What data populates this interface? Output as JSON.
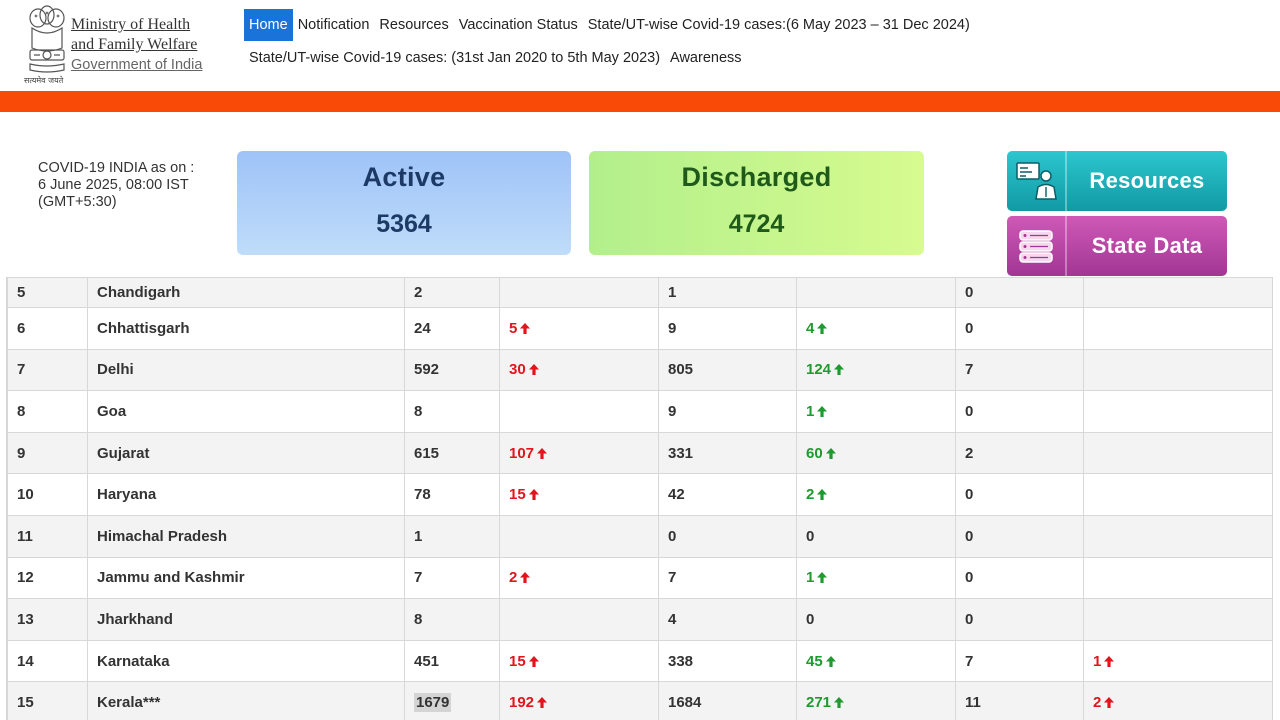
{
  "header": {
    "ministry_lines": [
      "Ministry of Health",
      "and Family Welfare",
      "Government of India"
    ],
    "motto": "सत्यमेव जयते",
    "nav_row1": [
      "Home",
      "Notification",
      "Resources",
      "Vaccination Status",
      "State/UT-wise Covid-19 cases:(6 May 2023 – 31 Dec 2024)"
    ],
    "nav_row2": [
      "State/UT-wise Covid-19 cases: (31st Jan 2020 to 5th May 2023)",
      "Awareness"
    ],
    "active_nav": "Home"
  },
  "summary": {
    "asof_line1": "COVID-19 INDIA as on :",
    "asof_line2": "6 June 2025, 08:00 IST",
    "asof_line3": "(GMT+5:30)",
    "active_title": "Active",
    "active_value": "5364",
    "discharged_title": "Discharged",
    "discharged_value": "4724"
  },
  "buttons": {
    "resources": "Resources",
    "state_data": "State Data"
  },
  "colors": {
    "orange_bar": "#fa4a07",
    "nav_active": "#1a73d9",
    "increase_red": "#e3141c",
    "increase_green": "#1e9a2f"
  },
  "table": {
    "rows": [
      {
        "sno": "5",
        "state": "Chandigarh",
        "active": "2",
        "active_change": "",
        "discharged": "1",
        "discharged_change": "",
        "deaths": "0",
        "deaths_change": ""
      },
      {
        "sno": "6",
        "state": "Chhattisgarh",
        "active": "24",
        "active_change": "5",
        "discharged": "9",
        "discharged_change": "4",
        "deaths": "0",
        "deaths_change": ""
      },
      {
        "sno": "7",
        "state": "Delhi",
        "active": "592",
        "active_change": "30",
        "discharged": "805",
        "discharged_change": "124",
        "deaths": "7",
        "deaths_change": ""
      },
      {
        "sno": "8",
        "state": "Goa",
        "active": "8",
        "active_change": "",
        "discharged": "9",
        "discharged_change": "1",
        "deaths": "0",
        "deaths_change": ""
      },
      {
        "sno": "9",
        "state": "Gujarat",
        "active": "615",
        "active_change": "107",
        "discharged": "331",
        "discharged_change": "60",
        "deaths": "2",
        "deaths_change": ""
      },
      {
        "sno": "10",
        "state": "Haryana",
        "active": "78",
        "active_change": "15",
        "discharged": "42",
        "discharged_change": "2",
        "deaths": "0",
        "deaths_change": ""
      },
      {
        "sno": "11",
        "state": "Himachal Pradesh",
        "active": "1",
        "active_change": "",
        "discharged": "0",
        "discharged_change": "0",
        "deaths": "0",
        "deaths_change": ""
      },
      {
        "sno": "12",
        "state": "Jammu and Kashmir",
        "active": "7",
        "active_change": "2",
        "discharged": "7",
        "discharged_change": "1",
        "deaths": "0",
        "deaths_change": ""
      },
      {
        "sno": "13",
        "state": "Jharkhand",
        "active": "8",
        "active_change": "",
        "discharged": "4",
        "discharged_change": "0",
        "deaths": "0",
        "deaths_change": ""
      },
      {
        "sno": "14",
        "state": "Karnataka",
        "active": "451",
        "active_change": "15",
        "discharged": "338",
        "discharged_change": "45",
        "deaths": "7",
        "deaths_change": "1"
      },
      {
        "sno": "15",
        "state": "Kerala***",
        "active": "1679",
        "active_change": "192",
        "discharged": "1684",
        "discharged_change": "271",
        "deaths": "11",
        "deaths_change": "2"
      }
    ]
  }
}
